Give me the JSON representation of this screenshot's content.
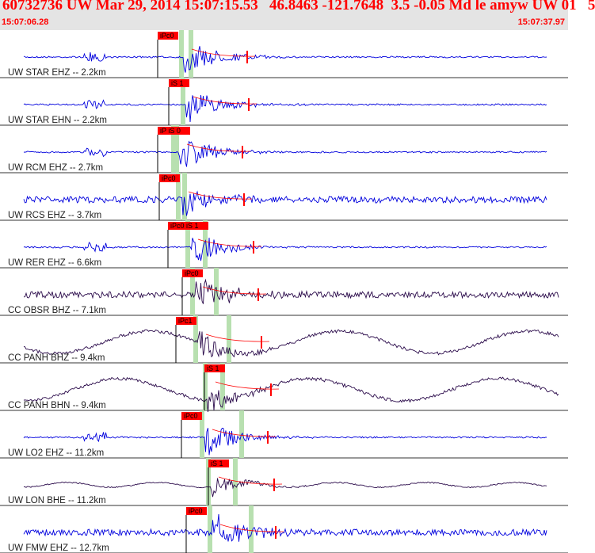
{
  "header": {
    "title": "60732736 UW Mar 29, 2014 15:07:15.53   46.8463 -121.7648  3.5 -0.05 Md le amyw UW 01   5",
    "start_time": "15:07:06.28",
    "end_time": "15:07:37.97"
  },
  "colors": {
    "header_bg": "#e4e4e4",
    "title": "#ff0000",
    "blue_trace": "#0000dd",
    "dark_trace": "#2a0a4a",
    "pick": "#ff0000",
    "band": "#b8e0b0"
  },
  "traces": [
    {
      "label": "UW STAR EHZ -- 2.2km",
      "pick": "iPc0",
      "color": "blue",
      "style": "spiky"
    },
    {
      "label": "UW STAR EHN -- 2.2km",
      "pick": "iS 1",
      "color": "blue",
      "style": "spiky"
    },
    {
      "label": "UW RCM EHZ -- 2.7km",
      "pick": "iP iS 0",
      "color": "blue",
      "style": "spiky"
    },
    {
      "label": "UW RCS EHZ -- 3.7km",
      "pick": "iPc0",
      "color": "blue",
      "style": "noisy"
    },
    {
      "label": "UW RER EHZ -- 6.6km",
      "pick": "iPc0 iS 1",
      "color": "blue",
      "style": "spiky"
    },
    {
      "label": "CC OBSR BHZ -- 7.1km",
      "pick": "iPc0",
      "color": "dark",
      "style": "noisy"
    },
    {
      "label": "CC PANH BHZ -- 9.4km",
      "pick": "iPc1",
      "color": "dark",
      "style": "wavy"
    },
    {
      "label": "CC PANH BHN -- 9.4km",
      "pick": "iS 1",
      "color": "dark",
      "style": "wavy"
    },
    {
      "label": "UW LO2 EHZ -- 11.2km",
      "pick": "iPc0",
      "color": "blue",
      "style": "spiky"
    },
    {
      "label": "UW LON BHE -- 11.2km",
      "pick": "iS 1",
      "color": "dark",
      "style": "flat"
    },
    {
      "label": "UW FMW EHZ -- 12.7km",
      "pick": "iPc0",
      "color": "blue",
      "style": "noisy"
    }
  ]
}
